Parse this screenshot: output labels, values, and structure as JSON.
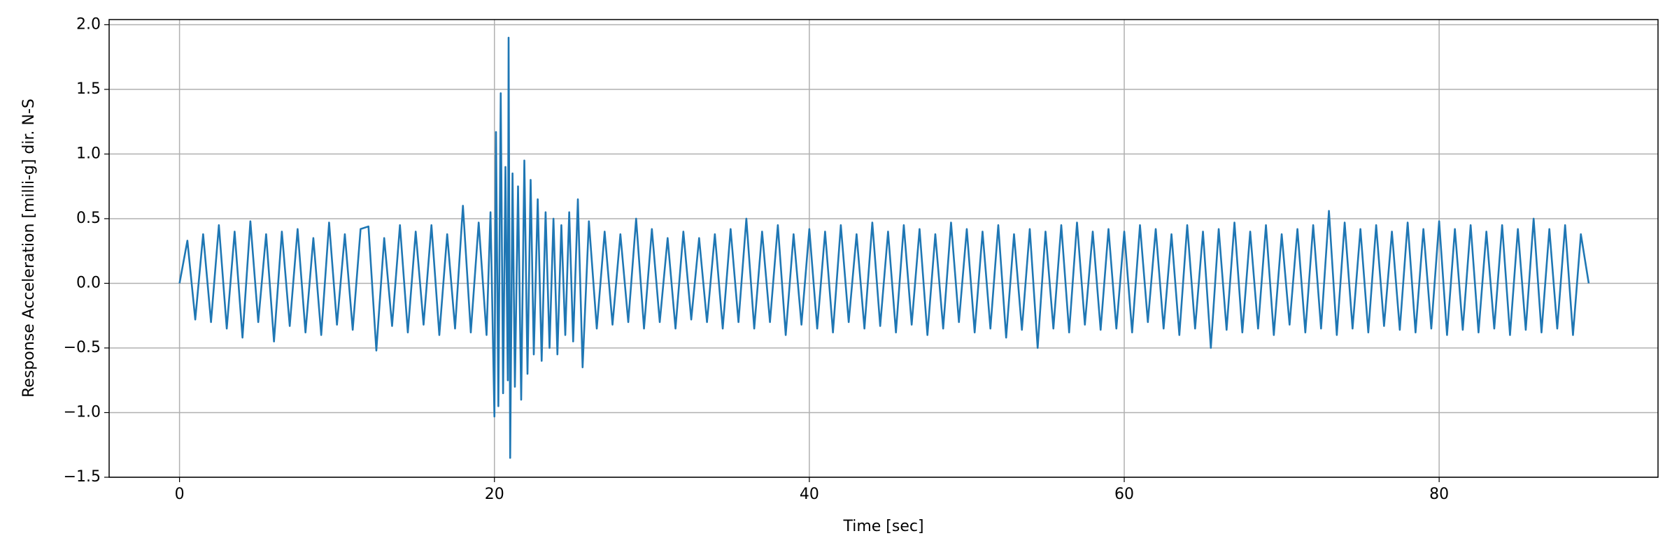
{
  "chart_data": {
    "type": "line",
    "xlabel": "Time [sec]",
    "ylabel": "Response Acceleration [milli-g] dir. N-S",
    "xlim": [
      -4.47,
      93.9
    ],
    "ylim": [
      -1.5,
      2.04
    ],
    "xticks": [
      0,
      20,
      40,
      60,
      80
    ],
    "yticks": [
      {
        "value": -1.5,
        "label": "−1.5"
      },
      {
        "value": -1.0,
        "label": "−1.0"
      },
      {
        "value": -0.5,
        "label": "−0.5"
      },
      {
        "value": 0,
        "label": "0.0"
      },
      0.5,
      {
        "value": 1,
        "label": "1.0"
      },
      1.5,
      {
        "value": 2,
        "label": "2.0"
      }
    ],
    "grid": true,
    "x": [
      0,
      0.5,
      1,
      1.5,
      2,
      2.5,
      3,
      3.5,
      4,
      4.5,
      5,
      5.5,
      6,
      6.5,
      7,
      7.5,
      8,
      8.5,
      9,
      9.5,
      10,
      10.5,
      11,
      11.5,
      12,
      12.5,
      13,
      13.5,
      14,
      14.5,
      15,
      15.5,
      16,
      16.5,
      17,
      17.5,
      18,
      18.5,
      19,
      19.5,
      19.75,
      20,
      20.1,
      20.25,
      20.4,
      20.55,
      20.7,
      20.85,
      20.9,
      21,
      21.15,
      21.3,
      21.5,
      21.7,
      21.9,
      22.1,
      22.3,
      22.5,
      22.75,
      23,
      23.25,
      23.5,
      23.75,
      24,
      24.25,
      24.5,
      24.75,
      25,
      25.3,
      25.6,
      26,
      26.5,
      27,
      27.5,
      28,
      28.5,
      29,
      29.5,
      30,
      30.5,
      31,
      31.5,
      32,
      32.5,
      33,
      33.5,
      34,
      34.5,
      35,
      35.5,
      36,
      36.5,
      37,
      37.5,
      38,
      38.5,
      39,
      39.5,
      40,
      40.5,
      41,
      41.5,
      42,
      42.5,
      43,
      43.5,
      44,
      44.5,
      45,
      45.5,
      46,
      46.5,
      47,
      47.5,
      48,
      48.5,
      49,
      49.5,
      50,
      50.5,
      51,
      51.5,
      52,
      52.5,
      53,
      53.5,
      54,
      54.5,
      55,
      55.5,
      56,
      56.5,
      57,
      57.5,
      58,
      58.5,
      59,
      59.5,
      60,
      60.5,
      61,
      61.5,
      62,
      62.5,
      63,
      63.5,
      64,
      64.5,
      65,
      65.5,
      66,
      66.5,
      67,
      67.5,
      68,
      68.5,
      69,
      69.5,
      70,
      70.5,
      71,
      71.5,
      72,
      72.5,
      73,
      73.5,
      74,
      74.5,
      75,
      75.5,
      76,
      76.5,
      77,
      77.5,
      78,
      78.5,
      79,
      79.5,
      80,
      80.5,
      81,
      81.5,
      82,
      82.5,
      83,
      83.5,
      84,
      84.5,
      85,
      85.5,
      86,
      86.5,
      87,
      87.5,
      88,
      88.5,
      89,
      89.5
    ],
    "series": [
      {
        "color": "#1f77b4",
        "values": [
          0.0,
          0.33,
          -0.28,
          0.38,
          -0.3,
          0.45,
          -0.35,
          0.4,
          -0.42,
          0.48,
          -0.3,
          0.38,
          -0.45,
          0.4,
          -0.33,
          0.42,
          -0.38,
          0.35,
          -0.4,
          0.47,
          -0.32,
          0.38,
          -0.36,
          0.42,
          0.44,
          -0.52,
          0.35,
          -0.33,
          0.45,
          -0.38,
          0.4,
          -0.32,
          0.45,
          -0.4,
          0.38,
          -0.35,
          0.6,
          -0.38,
          0.47,
          -0.4,
          0.55,
          -1.03,
          1.17,
          -0.95,
          1.47,
          -0.85,
          0.9,
          -0.75,
          1.9,
          -1.35,
          0.85,
          -0.8,
          0.75,
          -0.9,
          0.95,
          -0.7,
          0.8,
          -0.55,
          0.65,
          -0.6,
          0.55,
          -0.5,
          0.5,
          -0.55,
          0.45,
          -0.4,
          0.55,
          -0.45,
          0.65,
          -0.65,
          0.48,
          -0.35,
          0.4,
          -0.32,
          0.38,
          -0.3,
          0.5,
          -0.35,
          0.42,
          -0.3,
          0.35,
          -0.35,
          0.4,
          -0.28,
          0.35,
          -0.3,
          0.38,
          -0.35,
          0.42,
          -0.3,
          0.5,
          -0.35,
          0.4,
          -0.3,
          0.45,
          -0.4,
          0.38,
          -0.32,
          0.42,
          -0.35,
          0.4,
          -0.38,
          0.45,
          -0.3,
          0.38,
          -0.35,
          0.47,
          -0.33,
          0.4,
          -0.38,
          0.45,
          -0.32,
          0.42,
          -0.4,
          0.38,
          -0.35,
          0.47,
          -0.3,
          0.42,
          -0.38,
          0.4,
          -0.35,
          0.45,
          -0.42,
          0.38,
          -0.36,
          0.42,
          -0.5,
          0.4,
          -0.35,
          0.45,
          -0.38,
          0.47,
          -0.32,
          0.4,
          -0.36,
          0.42,
          -0.35,
          0.4,
          -0.38,
          0.45,
          -0.3,
          0.42,
          -0.35,
          0.38,
          -0.4,
          0.45,
          -0.35,
          0.4,
          -0.5,
          0.42,
          -0.36,
          0.47,
          -0.38,
          0.4,
          -0.35,
          0.45,
          -0.4,
          0.38,
          -0.32,
          0.42,
          -0.38,
          0.45,
          -0.35,
          0.56,
          -0.4,
          0.47,
          -0.35,
          0.42,
          -0.38,
          0.45,
          -0.33,
          0.4,
          -0.36,
          0.47,
          -0.38,
          0.42,
          -0.35,
          0.48,
          -0.4,
          0.42,
          -0.36,
          0.45,
          -0.38,
          0.4,
          -0.35,
          0.45,
          -0.4,
          0.42,
          -0.36,
          0.5,
          -0.38,
          0.42,
          -0.35,
          0.45,
          -0.4,
          0.38,
          0.0
        ]
      }
    ]
  }
}
